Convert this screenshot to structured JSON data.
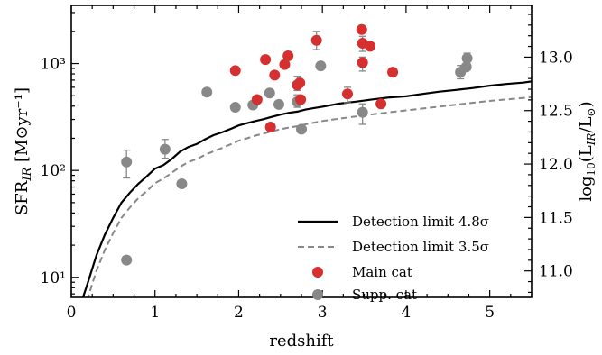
{
  "chart_data": {
    "type": "scatter",
    "xlabel": "redshift",
    "ylabel": "SFR_IR [M⊙yr⁻¹]",
    "ylabel_right": "log10(L_IR/L⊙)",
    "xlim": [
      0,
      5.5
    ],
    "ylim": [
      6.5,
      3500
    ],
    "yscale": "log",
    "right_axis_offset": 9.94,
    "x_ticks": [
      0,
      1,
      2,
      3,
      4,
      5
    ],
    "x_tick_labels": [
      "0",
      "1",
      "2",
      "3",
      "4",
      "5"
    ],
    "y_ticks": [
      10,
      100,
      1000
    ],
    "y_tick_labels": [
      "10¹",
      "10²",
      "10³"
    ],
    "y_right_ticks": [
      11.0,
      11.5,
      12.0,
      12.5,
      13.0
    ],
    "y_right_tick_labels": [
      "11.0",
      "11.5",
      "12.0",
      "12.5",
      "13.0"
    ],
    "grid": false,
    "legend_position": "lower-right",
    "colors": {
      "main": "#d62f2f",
      "supp": "#888888",
      "solid_line": "#000000",
      "dashed_line": "#888888"
    },
    "series": [
      {
        "name": "Detection limit 4.8σ",
        "type": "line",
        "style": "solid",
        "x": [
          0.14,
          0.2,
          0.3,
          0.4,
          0.5,
          0.6,
          0.7,
          0.8,
          0.9,
          1.0,
          1.1,
          1.2,
          1.3,
          1.4,
          1.5,
          1.6,
          1.7,
          1.8,
          1.9,
          2.0,
          2.1,
          2.2,
          2.3,
          2.4,
          2.5,
          2.6,
          2.7,
          2.8,
          2.9,
          3.0,
          3.2,
          3.4,
          3.6,
          3.8,
          4.0,
          4.2,
          4.4,
          4.6,
          4.8,
          5.0,
          5.2,
          5.4,
          5.5
        ],
        "y": [
          6.5,
          9,
          16,
          25,
          36,
          50,
          62,
          75,
          88,
          104,
          112,
          128,
          150,
          166,
          177,
          196,
          214,
          227,
          244,
          264,
          277,
          290,
          302,
          318,
          333,
          346,
          355,
          371,
          384,
          395,
          422,
          440,
          462,
          482,
          494,
          520,
          546,
          567,
          590,
          621,
          644,
          663,
          680
        ]
      },
      {
        "name": "Detection limit 3.5σ",
        "type": "line",
        "style": "dashed",
        "x": [
          0.14,
          0.2,
          0.3,
          0.4,
          0.5,
          0.6,
          0.7,
          0.8,
          0.9,
          1.0,
          1.1,
          1.2,
          1.3,
          1.4,
          1.5,
          1.6,
          1.7,
          1.8,
          1.9,
          2.0,
          2.1,
          2.2,
          2.3,
          2.4,
          2.5,
          2.6,
          2.7,
          2.8,
          2.9,
          3.0,
          3.2,
          3.4,
          3.6,
          3.8,
          4.0,
          4.2,
          4.4,
          4.6,
          4.8,
          5.0,
          5.2,
          5.4,
          5.5
        ],
        "y": [
          5,
          6.5,
          11.5,
          18,
          26,
          36,
          45,
          55,
          64,
          76,
          84,
          95,
          108,
          120,
          128,
          140,
          151,
          162,
          175,
          190,
          200,
          212,
          222,
          232,
          243,
          252,
          259,
          270,
          280,
          290,
          305,
          320,
          335,
          350,
          365,
          380,
          396,
          412,
          430,
          447,
          462,
          477,
          485
        ]
      },
      {
        "name": "Main cat",
        "type": "scatter",
        "points": [
          {
            "x": 1.96,
            "y": 860
          },
          {
            "x": 2.22,
            "y": 460
          },
          {
            "x": 2.32,
            "y": 1090
          },
          {
            "x": 2.38,
            "y": 255
          },
          {
            "x": 2.43,
            "y": 780
          },
          {
            "x": 2.55,
            "y": 980
          },
          {
            "x": 2.59,
            "y": 1180
          },
          {
            "x": 2.7,
            "y": 630,
            "err": [
              560,
              760
            ]
          },
          {
            "x": 2.73,
            "y": 660
          },
          {
            "x": 2.74,
            "y": 460
          },
          {
            "x": 2.93,
            "y": 1650,
            "err": [
              1350,
              2000
            ]
          },
          {
            "x": 3.3,
            "y": 520,
            "err": [
              430,
              600
            ]
          },
          {
            "x": 3.47,
            "y": 2080
          },
          {
            "x": 3.48,
            "y": 1550,
            "err": [
              1300,
              1800
            ]
          },
          {
            "x": 3.48,
            "y": 1020,
            "err": [
              850,
              1150
            ]
          },
          {
            "x": 3.57,
            "y": 1450
          },
          {
            "x": 3.7,
            "y": 420
          },
          {
            "x": 3.84,
            "y": 830
          }
        ]
      },
      {
        "name": "Supp. cat",
        "type": "scatter",
        "points": [
          {
            "x": 0.66,
            "y": 14.5
          },
          {
            "x": 0.66,
            "y": 120,
            "err": [
              85,
              155
            ]
          },
          {
            "x": 1.12,
            "y": 158,
            "err": [
              130,
              195
            ]
          },
          {
            "x": 1.32,
            "y": 75
          },
          {
            "x": 1.62,
            "y": 540
          },
          {
            "x": 1.96,
            "y": 390
          },
          {
            "x": 2.17,
            "y": 410
          },
          {
            "x": 2.37,
            "y": 530
          },
          {
            "x": 2.48,
            "y": 415
          },
          {
            "x": 2.7,
            "y": 440,
            "err": [
              390,
              510
            ]
          },
          {
            "x": 2.75,
            "y": 243
          },
          {
            "x": 2.98,
            "y": 950
          },
          {
            "x": 3.48,
            "y": 350,
            "err": [
              270,
              420
            ]
          },
          {
            "x": 4.65,
            "y": 830,
            "err": [
              720,
              960
            ]
          },
          {
            "x": 4.72,
            "y": 930
          },
          {
            "x": 4.73,
            "y": 1120,
            "err": [
              1000,
              1250
            ]
          }
        ]
      }
    ]
  }
}
